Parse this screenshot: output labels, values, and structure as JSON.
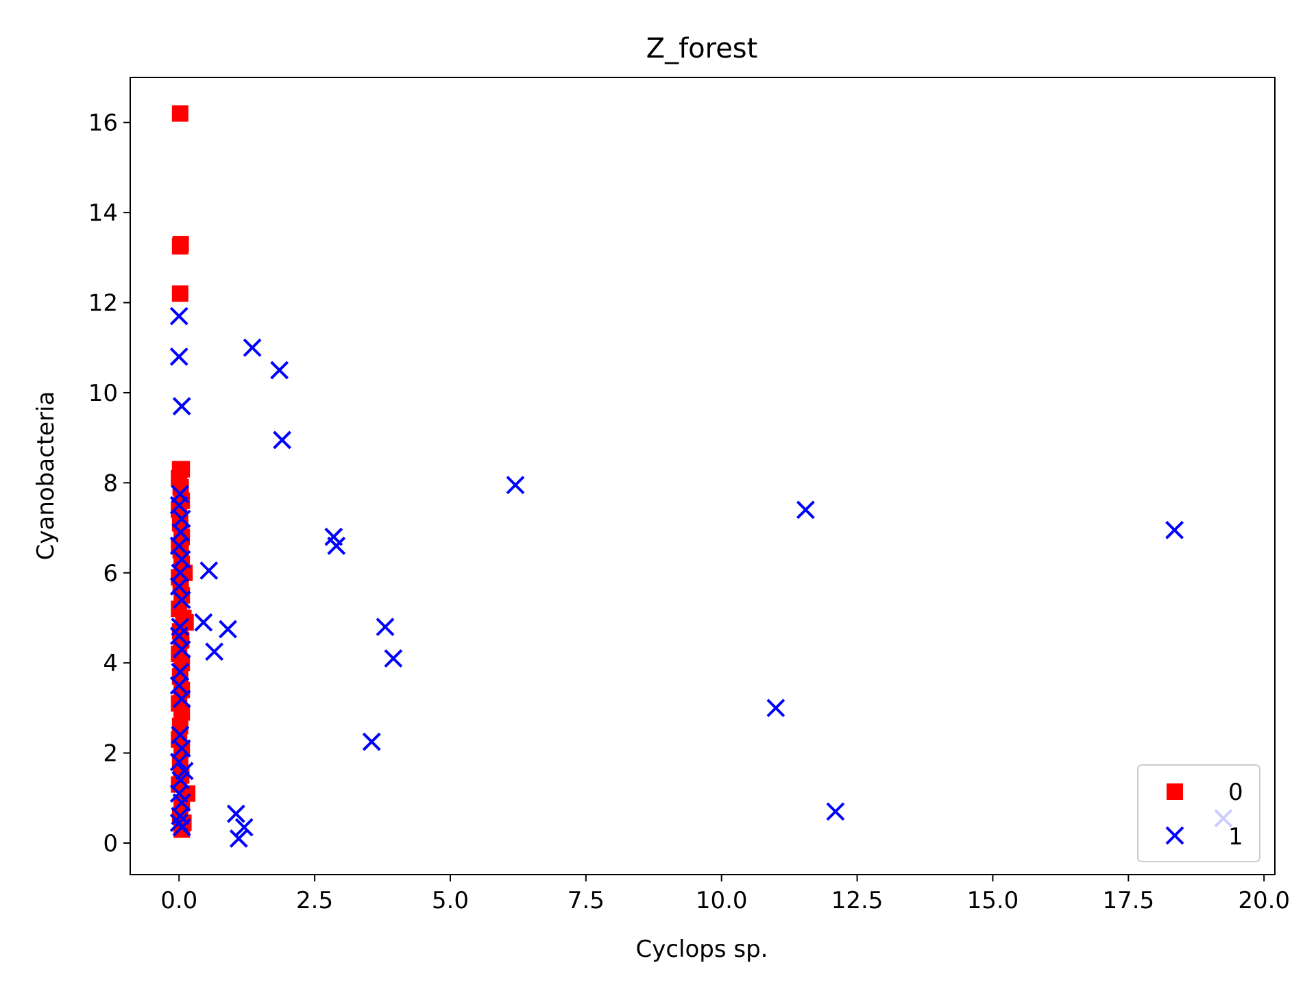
{
  "chart_data": {
    "type": "scatter",
    "title": "Z_forest",
    "xlabel": "Cyclops sp.",
    "ylabel": "Cyanobacteria",
    "xlim": [
      -0.9,
      20.2
    ],
    "ylim": [
      -0.7,
      17.0
    ],
    "xticks": [
      0.0,
      2.5,
      5.0,
      7.5,
      10.0,
      12.5,
      15.0,
      17.5,
      20.0
    ],
    "xtick_labels": [
      "0.0",
      "2.5",
      "5.0",
      "7.5",
      "10.0",
      "12.5",
      "15.0",
      "17.5",
      "20.0"
    ],
    "yticks": [
      0,
      2,
      4,
      6,
      8,
      10,
      12,
      14,
      16
    ],
    "ytick_labels": [
      "0",
      "2",
      "4",
      "6",
      "8",
      "10",
      "12",
      "14",
      "16"
    ],
    "grid": false,
    "legend_position": "lower-right",
    "series": [
      {
        "name": "0",
        "marker": "square",
        "color": "#ff0000",
        "points": [
          [
            0.02,
            16.2
          ],
          [
            0.03,
            13.3
          ],
          [
            0.02,
            13.25
          ],
          [
            0.02,
            12.2
          ],
          [
            0.02,
            8.3
          ],
          [
            0.05,
            8.3
          ],
          [
            0.0,
            8.1
          ],
          [
            0.03,
            7.9
          ],
          [
            0.05,
            7.6
          ],
          [
            0.0,
            7.4
          ],
          [
            0.02,
            7.1
          ],
          [
            0.05,
            6.8
          ],
          [
            0.0,
            6.6
          ],
          [
            0.03,
            6.5
          ],
          [
            0.05,
            6.2
          ],
          [
            0.1,
            6.0
          ],
          [
            0.0,
            5.9
          ],
          [
            0.03,
            5.7
          ],
          [
            0.05,
            5.5
          ],
          [
            0.0,
            5.2
          ],
          [
            0.08,
            5.0
          ],
          [
            0.12,
            4.9
          ],
          [
            0.02,
            4.7
          ],
          [
            0.04,
            4.5
          ],
          [
            0.0,
            4.2
          ],
          [
            0.05,
            4.0
          ],
          [
            0.02,
            3.7
          ],
          [
            0.05,
            3.4
          ],
          [
            0.0,
            3.1
          ],
          [
            0.05,
            2.9
          ],
          [
            0.02,
            2.6
          ],
          [
            0.0,
            2.3
          ],
          [
            0.05,
            2.1
          ],
          [
            0.02,
            1.8
          ],
          [
            0.04,
            1.5
          ],
          [
            0.0,
            1.3
          ],
          [
            0.15,
            1.1
          ],
          [
            0.05,
            0.9
          ],
          [
            0.02,
            0.6
          ],
          [
            0.08,
            0.45
          ],
          [
            0.05,
            0.3
          ]
        ]
      },
      {
        "name": "1",
        "marker": "x",
        "color": "#0000ff",
        "points": [
          [
            0.0,
            11.7
          ],
          [
            0.0,
            10.8
          ],
          [
            0.05,
            9.7
          ],
          [
            0.02,
            7.75
          ],
          [
            0.0,
            7.5
          ],
          [
            0.05,
            7.2
          ],
          [
            0.03,
            6.9
          ],
          [
            0.0,
            6.6
          ],
          [
            0.05,
            6.3
          ],
          [
            0.02,
            6.0
          ],
          [
            0.0,
            5.7
          ],
          [
            0.05,
            5.4
          ],
          [
            0.02,
            4.8
          ],
          [
            0.0,
            4.6
          ],
          [
            0.05,
            4.3
          ],
          [
            0.02,
            3.8
          ],
          [
            0.0,
            3.5
          ],
          [
            0.05,
            3.2
          ],
          [
            0.02,
            2.4
          ],
          [
            0.05,
            2.1
          ],
          [
            0.0,
            1.8
          ],
          [
            0.1,
            1.6
          ],
          [
            0.03,
            1.4
          ],
          [
            0.0,
            1.1
          ],
          [
            0.05,
            0.9
          ],
          [
            0.02,
            0.6
          ],
          [
            0.0,
            0.45
          ],
          [
            0.05,
            0.35
          ],
          [
            0.55,
            6.05
          ],
          [
            0.45,
            4.9
          ],
          [
            0.65,
            4.25
          ],
          [
            0.9,
            4.75
          ],
          [
            1.05,
            0.65
          ],
          [
            1.2,
            0.35
          ],
          [
            1.1,
            0.1
          ],
          [
            1.35,
            11.0
          ],
          [
            1.85,
            10.5
          ],
          [
            1.9,
            8.95
          ],
          [
            2.85,
            6.8
          ],
          [
            2.9,
            6.6
          ],
          [
            3.55,
            2.25
          ],
          [
            3.8,
            4.8
          ],
          [
            3.95,
            4.1
          ],
          [
            6.2,
            7.95
          ],
          [
            11.0,
            3.0
          ],
          [
            11.55,
            7.4
          ],
          [
            12.1,
            0.7
          ],
          [
            18.35,
            6.95
          ],
          [
            19.25,
            0.55
          ]
        ]
      }
    ]
  }
}
